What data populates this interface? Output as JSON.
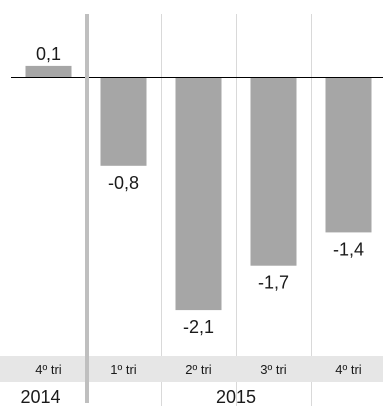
{
  "colors": {
    "background": "#ffffff",
    "bar": "#a6a6a6",
    "gridline": "#d9d9d9",
    "zero_line": "#000000",
    "separator": "#bfbfbf",
    "tick_band": "#e6e6e6",
    "text": "#1a1a1a"
  },
  "chart_data": {
    "type": "bar",
    "title": "",
    "xlabel": "",
    "ylabel": "",
    "ylim": [
      -2.55,
      0.2
    ],
    "grid": true,
    "legend": "none",
    "categories": [
      "4º tri",
      "1º tri",
      "2º tri",
      "3º tri",
      "4º tri"
    ],
    "years": [
      {
        "label": "2014",
        "categories": 1
      },
      {
        "label": "2015",
        "categories": 4
      }
    ],
    "values": [
      0.1,
      -0.8,
      -2.1,
      -1.7,
      -1.4
    ],
    "data_labels": [
      "0,1",
      "-0,8",
      "-2,1",
      "-1,7",
      "-1,4"
    ]
  }
}
